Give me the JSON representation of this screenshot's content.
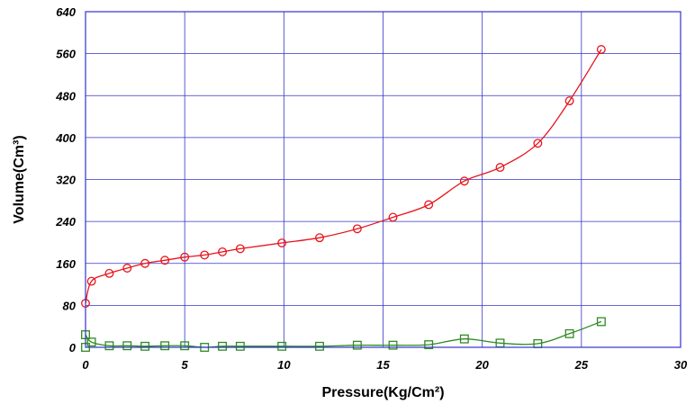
{
  "chart_data": {
    "type": "line",
    "xlabel": "Pressure(Kg/Cm²)",
    "ylabel": "Volume(Cm³)",
    "xlim": [
      0,
      30
    ],
    "ylim": [
      0,
      640
    ],
    "x_ticks": [
      "0",
      "5",
      "10",
      "15",
      "20",
      "25",
      "30"
    ],
    "y_ticks": [
      "0",
      "80",
      "160",
      "240",
      "320",
      "400",
      "480",
      "560",
      "640"
    ],
    "grid": true,
    "colors": {
      "grid": "#3333cc",
      "frame": "#3333cc",
      "adsorption": "#e8141c",
      "desorption": "#2e8b22"
    },
    "series": [
      {
        "marker": "circle",
        "color": "#e8141c",
        "x": [
          0,
          0.3,
          1.2,
          2.1,
          3.0,
          4.0,
          5.0,
          6.0,
          6.9,
          7.8,
          9.9,
          11.8,
          13.7,
          15.5,
          17.3,
          19.1,
          20.9,
          22.8,
          24.4,
          26.0
        ],
        "y": [
          84,
          126,
          141,
          151,
          160,
          166,
          172,
          176,
          182,
          188,
          199,
          209,
          226,
          248,
          272,
          317,
          343,
          389,
          470,
          568
        ]
      },
      {
        "marker": "square",
        "color": "#2e8b22",
        "x": [
          0,
          0.3,
          1.2,
          2.1,
          3.0,
          4.0,
          5.0,
          6.0,
          6.9,
          7.8,
          9.9,
          11.8,
          13.7,
          15.5,
          17.3,
          19.1,
          20.9,
          22.8,
          24.4,
          26.0
        ],
        "y": [
          24,
          10,
          3,
          3,
          2,
          3,
          3,
          0,
          2,
          2,
          2,
          2,
          4,
          4,
          5,
          16,
          8,
          7,
          26,
          49
        ]
      },
      {
        "marker": "square",
        "color": "#2e8b22",
        "x": [
          0
        ],
        "y": [
          0
        ]
      }
    ]
  }
}
